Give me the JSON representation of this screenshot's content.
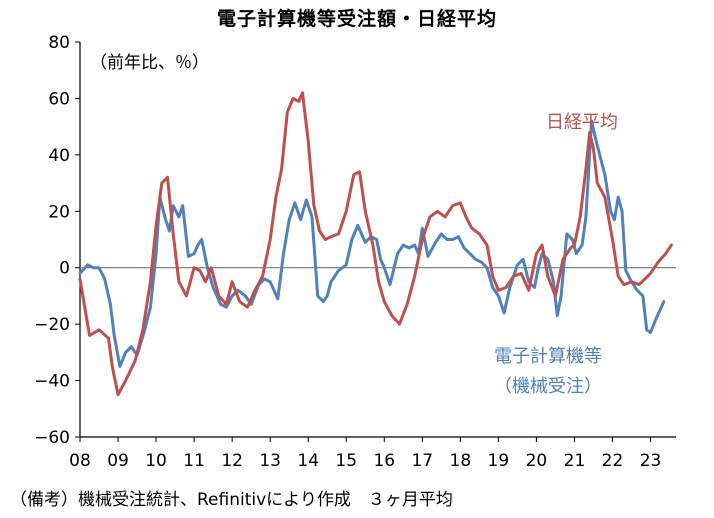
{
  "chart_data": {
    "type": "line",
    "title": "電子計算機等受注額・日経平均",
    "unit_label": "（前年比、％）",
    "xlabel": "",
    "ylabel": "",
    "xlim": [
      2008.0,
      2023.67
    ],
    "ylim": [
      -60,
      80
    ],
    "y_ticks": [
      -60,
      -40,
      -20,
      0,
      20,
      40,
      60,
      80
    ],
    "y_tick_labels": [
      "−60",
      "−40",
      "−20",
      "0",
      "20",
      "40",
      "60",
      "80"
    ],
    "x_ticks": [
      2008,
      2009,
      2010,
      2011,
      2012,
      2013,
      2014,
      2015,
      2016,
      2017,
      2018,
      2019,
      2020,
      2021,
      2022,
      2023
    ],
    "x_tick_labels": [
      "08",
      "09",
      "10",
      "11",
      "12",
      "13",
      "14",
      "15",
      "16",
      "17",
      "18",
      "19",
      "20",
      "21",
      "22",
      "23"
    ],
    "grid": false,
    "zero_line": true,
    "source_note": "（備考）機械受注統計、Refinitivにより作成　３ヶ月平均",
    "series": [
      {
        "name": "日経平均",
        "color": "#c0504d",
        "label_lines": [
          "日経平均"
        ],
        "points": [
          [
            2008.0,
            -4
          ],
          [
            2008.25,
            -24
          ],
          [
            2008.5,
            -22
          ],
          [
            2008.75,
            -25
          ],
          [
            2008.85,
            -35
          ],
          [
            2009.0,
            -45
          ],
          [
            2009.2,
            -40
          ],
          [
            2009.45,
            -33
          ],
          [
            2009.65,
            -22
          ],
          [
            2009.85,
            -5
          ],
          [
            2010.0,
            15
          ],
          [
            2010.15,
            30
          ],
          [
            2010.3,
            32
          ],
          [
            2010.45,
            12
          ],
          [
            2010.6,
            -5
          ],
          [
            2010.8,
            -10
          ],
          [
            2011.0,
            0
          ],
          [
            2011.15,
            -1
          ],
          [
            2011.3,
            -5
          ],
          [
            2011.45,
            0
          ],
          [
            2011.65,
            -10
          ],
          [
            2011.85,
            -13
          ],
          [
            2012.0,
            -5
          ],
          [
            2012.2,
            -12
          ],
          [
            2012.4,
            -14
          ],
          [
            2012.6,
            -8
          ],
          [
            2012.8,
            -3
          ],
          [
            2013.0,
            10
          ],
          [
            2013.15,
            25
          ],
          [
            2013.3,
            35
          ],
          [
            2013.45,
            55
          ],
          [
            2013.6,
            60
          ],
          [
            2013.75,
            59
          ],
          [
            2013.85,
            62
          ],
          [
            2014.0,
            45
          ],
          [
            2014.15,
            22
          ],
          [
            2014.3,
            13
          ],
          [
            2014.45,
            10
          ],
          [
            2014.6,
            11
          ],
          [
            2014.8,
            12
          ],
          [
            2015.0,
            20
          ],
          [
            2015.2,
            33
          ],
          [
            2015.35,
            34
          ],
          [
            2015.5,
            20
          ],
          [
            2015.7,
            8
          ],
          [
            2015.85,
            -5
          ],
          [
            2016.0,
            -12
          ],
          [
            2016.2,
            -17
          ],
          [
            2016.4,
            -20
          ],
          [
            2016.6,
            -13
          ],
          [
            2016.8,
            -3
          ],
          [
            2017.0,
            10
          ],
          [
            2017.2,
            18
          ],
          [
            2017.4,
            20
          ],
          [
            2017.6,
            18
          ],
          [
            2017.8,
            22
          ],
          [
            2018.0,
            23
          ],
          [
            2018.15,
            18
          ],
          [
            2018.3,
            14
          ],
          [
            2018.5,
            12
          ],
          [
            2018.7,
            8
          ],
          [
            2018.85,
            -3
          ],
          [
            2019.0,
            -8
          ],
          [
            2019.2,
            -7
          ],
          [
            2019.4,
            -3
          ],
          [
            2019.6,
            -2
          ],
          [
            2019.8,
            -8
          ],
          [
            2020.0,
            5
          ],
          [
            2020.15,
            8
          ],
          [
            2020.3,
            -3
          ],
          [
            2020.5,
            -10
          ],
          [
            2020.7,
            3
          ],
          [
            2020.9,
            7
          ],
          [
            2021.0,
            8
          ],
          [
            2021.15,
            18
          ],
          [
            2021.3,
            35
          ],
          [
            2021.4,
            48
          ],
          [
            2021.5,
            42
          ],
          [
            2021.6,
            30
          ],
          [
            2021.8,
            25
          ],
          [
            2022.0,
            10
          ],
          [
            2022.15,
            -3
          ],
          [
            2022.3,
            -6
          ],
          [
            2022.5,
            -5
          ],
          [
            2022.7,
            -6
          ],
          [
            2022.85,
            -4
          ],
          [
            2023.0,
            -2
          ],
          [
            2023.2,
            2
          ],
          [
            2023.4,
            5
          ],
          [
            2023.55,
            8
          ]
        ]
      },
      {
        "name": "電子計算機等（機械受注）",
        "color": "#4f81bd",
        "label_lines": [
          "電子計算機等",
          "（機械受注）"
        ],
        "points": [
          [
            2008.0,
            -2
          ],
          [
            2008.2,
            1
          ],
          [
            2008.35,
            0
          ],
          [
            2008.5,
            0
          ],
          [
            2008.65,
            -4
          ],
          [
            2008.8,
            -13
          ],
          [
            2008.9,
            -24
          ],
          [
            2009.05,
            -35
          ],
          [
            2009.2,
            -30
          ],
          [
            2009.35,
            -28
          ],
          [
            2009.5,
            -31
          ],
          [
            2009.7,
            -22
          ],
          [
            2009.85,
            -14
          ],
          [
            2010.0,
            5
          ],
          [
            2010.1,
            25
          ],
          [
            2010.25,
            17
          ],
          [
            2010.35,
            13
          ],
          [
            2010.45,
            22
          ],
          [
            2010.6,
            18
          ],
          [
            2010.7,
            22
          ],
          [
            2010.85,
            4
          ],
          [
            2011.0,
            5
          ],
          [
            2011.1,
            8
          ],
          [
            2011.2,
            10
          ],
          [
            2011.35,
            0
          ],
          [
            2011.5,
            -7
          ],
          [
            2011.7,
            -13
          ],
          [
            2011.85,
            -14
          ],
          [
            2012.0,
            -10
          ],
          [
            2012.15,
            -8
          ],
          [
            2012.35,
            -10
          ],
          [
            2012.5,
            -13
          ],
          [
            2012.7,
            -6
          ],
          [
            2012.85,
            -4
          ],
          [
            2013.0,
            -5
          ],
          [
            2013.2,
            -11
          ],
          [
            2013.35,
            5
          ],
          [
            2013.5,
            17
          ],
          [
            2013.65,
            23
          ],
          [
            2013.8,
            17
          ],
          [
            2013.95,
            24
          ],
          [
            2014.1,
            18
          ],
          [
            2014.25,
            -10
          ],
          [
            2014.4,
            -12
          ],
          [
            2014.5,
            -10
          ],
          [
            2014.6,
            -5
          ],
          [
            2014.8,
            -1
          ],
          [
            2015.0,
            1
          ],
          [
            2015.15,
            10
          ],
          [
            2015.3,
            15
          ],
          [
            2015.5,
            9
          ],
          [
            2015.65,
            11
          ],
          [
            2015.8,
            10
          ],
          [
            2015.9,
            3
          ],
          [
            2016.0,
            0
          ],
          [
            2016.15,
            -6
          ],
          [
            2016.35,
            5
          ],
          [
            2016.5,
            8
          ],
          [
            2016.65,
            7
          ],
          [
            2016.8,
            8
          ],
          [
            2016.9,
            5
          ],
          [
            2017.0,
            14
          ],
          [
            2017.15,
            4
          ],
          [
            2017.35,
            9
          ],
          [
            2017.5,
            12
          ],
          [
            2017.65,
            10
          ],
          [
            2017.8,
            10
          ],
          [
            2017.95,
            11
          ],
          [
            2018.1,
            7
          ],
          [
            2018.25,
            5
          ],
          [
            2018.4,
            3
          ],
          [
            2018.55,
            2
          ],
          [
            2018.7,
            0
          ],
          [
            2018.85,
            -7
          ],
          [
            2019.0,
            -10
          ],
          [
            2019.15,
            -16
          ],
          [
            2019.3,
            -7
          ],
          [
            2019.5,
            1
          ],
          [
            2019.65,
            3
          ],
          [
            2019.8,
            -5
          ],
          [
            2019.95,
            -7
          ],
          [
            2020.05,
            0
          ],
          [
            2020.15,
            5
          ],
          [
            2020.3,
            3
          ],
          [
            2020.45,
            -5
          ],
          [
            2020.55,
            -17
          ],
          [
            2020.65,
            -10
          ],
          [
            2020.8,
            12
          ],
          [
            2020.95,
            10
          ],
          [
            2021.05,
            5
          ],
          [
            2021.2,
            8
          ],
          [
            2021.3,
            18
          ],
          [
            2021.45,
            52
          ],
          [
            2021.55,
            46
          ],
          [
            2021.7,
            38
          ],
          [
            2021.8,
            33
          ],
          [
            2021.95,
            20
          ],
          [
            2022.05,
            17
          ],
          [
            2022.15,
            25
          ],
          [
            2022.25,
            20
          ],
          [
            2022.35,
            -1
          ],
          [
            2022.5,
            -5
          ],
          [
            2022.65,
            -8
          ],
          [
            2022.8,
            -10
          ],
          [
            2022.9,
            -22
          ],
          [
            2023.0,
            -23
          ],
          [
            2023.15,
            -18
          ],
          [
            2023.35,
            -12
          ]
        ]
      }
    ]
  }
}
